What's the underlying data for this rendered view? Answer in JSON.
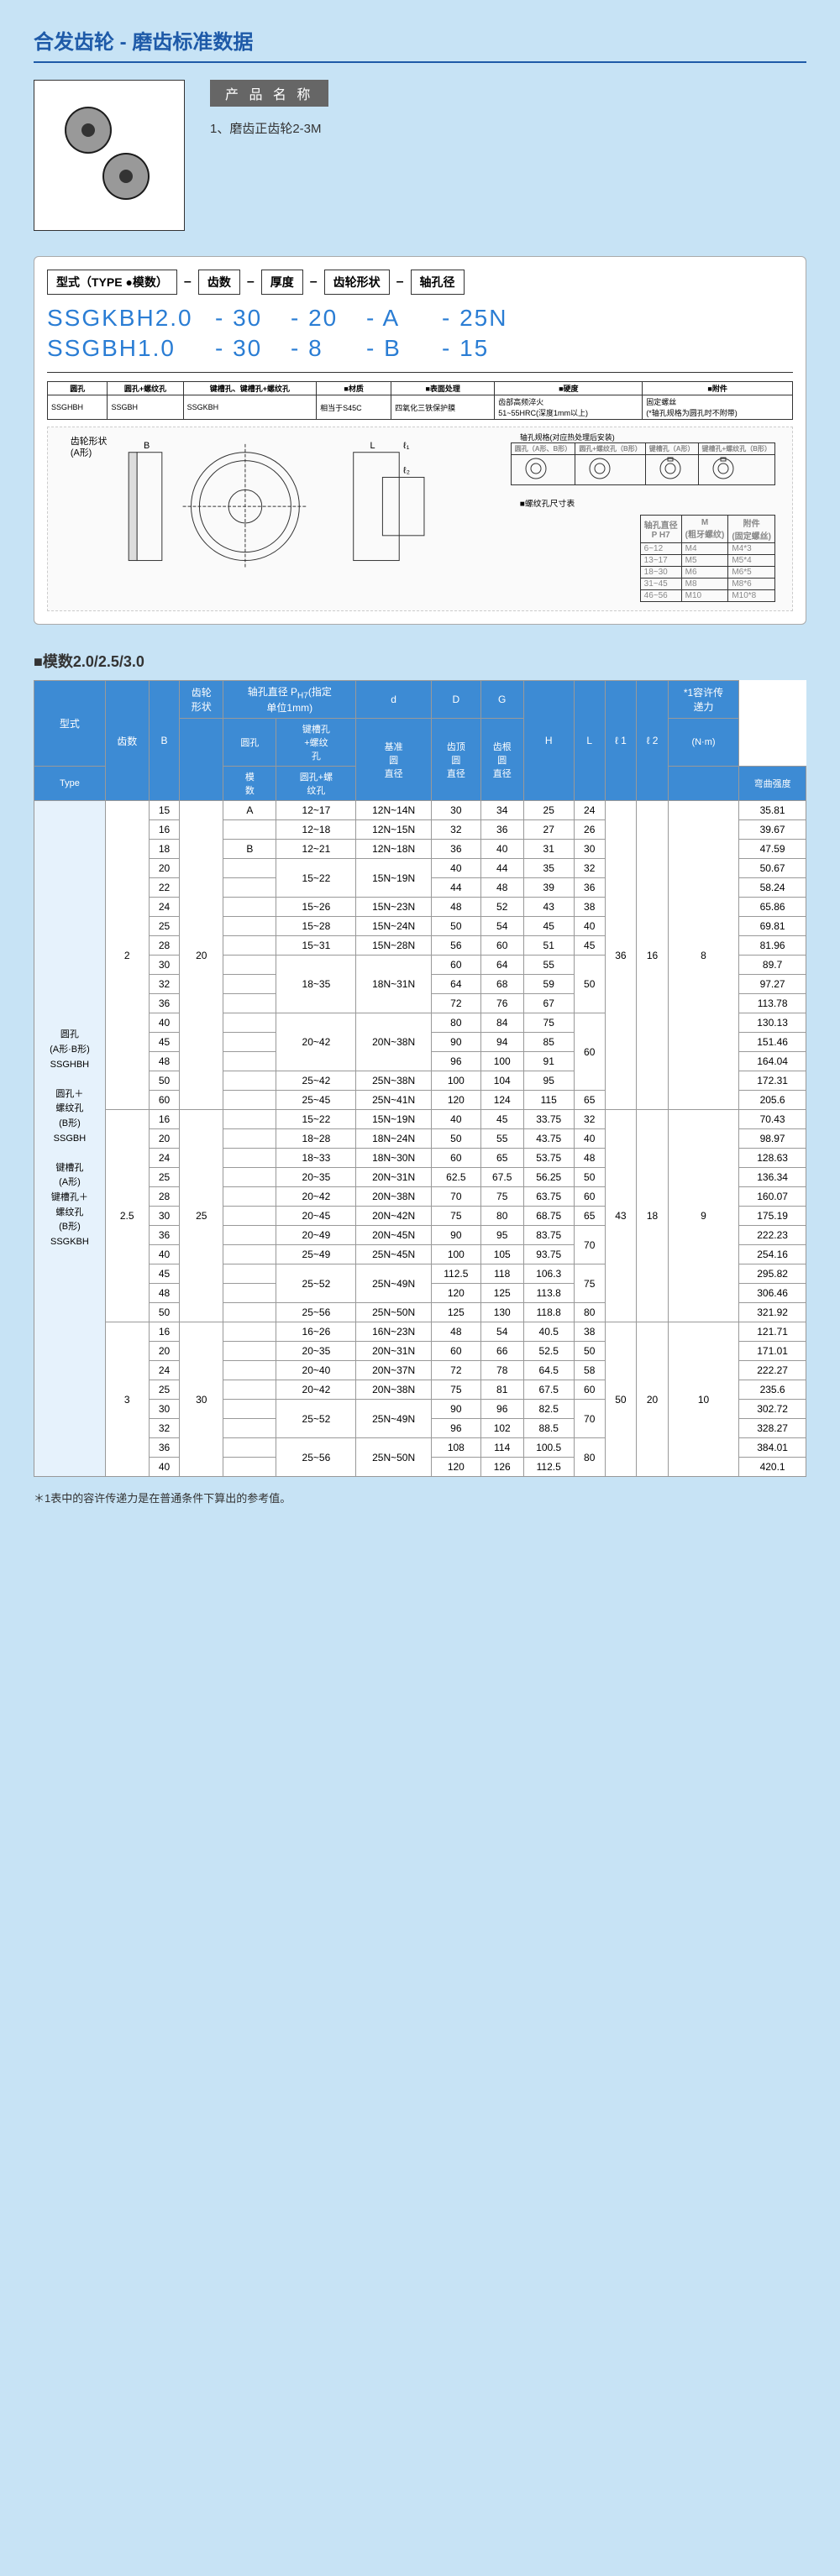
{
  "title": "合发齿轮 - 磨齿标准数据",
  "product_name_label": "产 品 名 称",
  "product_desc": "1、磨齿正齿轮2-3M",
  "type_header": {
    "labels": [
      "型式（TYPE ●模数）",
      "齿数",
      "厚度",
      "齿轮形状",
      "轴孔径"
    ],
    "line1": [
      "SSGKBH2.0",
      "- 30",
      "- 20",
      "-  A",
      "- 25N"
    ],
    "line2": [
      "SSGBH1.0",
      "- 30",
      "- 8",
      "-  B",
      "- 15"
    ]
  },
  "diagram_spec_header": [
    "圆孔",
    "圆孔+螺纹孔",
    "键槽孔、键槽孔+螺纹孔",
    "材质",
    "表面处理",
    "硬度",
    "附件"
  ],
  "diagram_spec_row": [
    "SSGHBH",
    "SSGBH",
    "SSGKBH",
    "相当于S45C",
    "四氧化三铁保护膜",
    "齿部高频淬火\n51~55HRC(深度1mm以上)",
    "固定螺丝\n(*轴孔规格为圆孔时不附带)"
  ],
  "bore_label": "齿轮形状\n(A形)",
  "bore_spec_title": "轴孔规格(对应热处理后安装)",
  "bore_styles": [
    "圆孔（A形、B形）",
    "圆孔+螺纹孔（B形）",
    "键槽孔（A形）",
    "键槽孔+螺纹孔（B形）"
  ],
  "thread_table_title": "螺纹孔尺寸表",
  "thread_table_header": [
    "轴孔直径\nP H7",
    "M\n(粗牙螺纹)",
    "附件\n(固定螺丝)"
  ],
  "thread_table_rows": [
    [
      "6~12",
      "M4",
      "M4*3"
    ],
    [
      "13~17",
      "M5",
      "M5*4"
    ],
    [
      "18~30",
      "M6",
      "M6*5"
    ],
    [
      "31~45",
      "M8",
      "M8*6"
    ],
    [
      "46~56",
      "M10",
      "M10*8"
    ]
  ],
  "section2_title": "■模数2.0/2.5/3.0",
  "table_header": {
    "row1": [
      "型式",
      "",
      "齿轮\n形状",
      "轴孔直径 PH7(指定\n单位1mm)",
      "d",
      "D",
      "G",
      "",
      "",
      "",
      "",
      "*1容许传\n递力"
    ],
    "row2": [
      "齿数",
      "B",
      "",
      "圆孔",
      "键槽孔\n+螺纹\n孔",
      "基准\n圆\n直径",
      "齿顶\n圆\n直径",
      "齿根\n圆\n直径",
      "H",
      "L",
      "ℓ 1",
      "ℓ 2",
      "(N·m)"
    ],
    "row3": [
      "Type",
      "模\n数",
      "",
      "",
      "圆孔+螺\n纹孔",
      "",
      "",
      "",
      "",
      "",
      "",
      "",
      "",
      "弯曲强度"
    ]
  },
  "type_labels": "圆孔\n(A形·B形)\nSSGHBH\n\n圆孔＋\n螺纹孔\n(B形)\nSSGBH\n\n键槽孔\n(A形)\n键槽孔＋\n螺纹孔\n(B形)\nSSGKBH",
  "data_rows": [
    {
      "mod": "2",
      "B": "20",
      "tc": "15",
      "shape": "A",
      "b1": "12~17",
      "b2": "12N~14N",
      "d": "30",
      "D": "34",
      "G": "25",
      "H": "24",
      "L": "36",
      "l1": "16",
      "l2": "8",
      "str": "35.81"
    },
    {
      "tc": "16",
      "b1": "12~18",
      "b2": "12N~15N",
      "d": "32",
      "D": "36",
      "G": "27",
      "H": "26",
      "str": "39.67"
    },
    {
      "tc": "18",
      "shape": "B",
      "b1": "12~21",
      "b2": "12N~18N",
      "d": "36",
      "D": "40",
      "G": "31",
      "H": "30",
      "str": "47.59"
    },
    {
      "tc": "20",
      "b1": "15~22",
      "b2": "15N~19N",
      "d": "40",
      "D": "44",
      "G": "35",
      "H": "32",
      "str": "50.67",
      "merge_b": 2
    },
    {
      "tc": "22",
      "d": "44",
      "D": "48",
      "G": "39",
      "H": "36",
      "str": "58.24"
    },
    {
      "tc": "24",
      "b1": "15~26",
      "b2": "15N~23N",
      "d": "48",
      "D": "52",
      "G": "43",
      "H": "38",
      "str": "65.86"
    },
    {
      "tc": "25",
      "b1": "15~28",
      "b2": "15N~24N",
      "d": "50",
      "D": "54",
      "G": "45",
      "H": "40",
      "str": "69.81"
    },
    {
      "tc": "28",
      "b1": "15~31",
      "b2": "15N~28N",
      "d": "56",
      "D": "60",
      "G": "51",
      "H": "45",
      "str": "81.96"
    },
    {
      "tc": "30",
      "b1": "18~35",
      "b2": "18N~31N",
      "d": "60",
      "D": "64",
      "G": "55",
      "H": "50",
      "str": "89.7",
      "merge_b": 3
    },
    {
      "tc": "32",
      "d": "64",
      "D": "68",
      "G": "59",
      "str": "97.27"
    },
    {
      "tc": "36",
      "d": "72",
      "D": "76",
      "G": "67",
      "str": "113.78"
    },
    {
      "tc": "40",
      "b1": "20~42",
      "b2": "20N~38N",
      "d": "80",
      "D": "84",
      "G": "75",
      "H": "60",
      "str": "130.13",
      "merge_b": 3
    },
    {
      "tc": "45",
      "d": "90",
      "D": "94",
      "G": "85",
      "str": "151.46"
    },
    {
      "tc": "48",
      "d": "96",
      "D": "100",
      "G": "91",
      "str": "164.04"
    },
    {
      "tc": "50",
      "b1": "25~42",
      "b2": "25N~38N",
      "d": "100",
      "D": "104",
      "G": "95",
      "str": "172.31"
    },
    {
      "tc": "60",
      "b1": "25~45",
      "b2": "25N~41N",
      "d": "120",
      "D": "124",
      "G": "115",
      "H": "65",
      "str": "205.6"
    },
    {
      "mod": "2.5",
      "B": "25",
      "tc": "16",
      "b1": "15~22",
      "b2": "15N~19N",
      "d": "40",
      "D": "45",
      "G": "33.75",
      "H": "32",
      "L": "43",
      "l1": "18",
      "l2": "9",
      "str": "70.43"
    },
    {
      "tc": "20",
      "b1": "18~28",
      "b2": "18N~24N",
      "d": "50",
      "D": "55",
      "G": "43.75",
      "H": "40",
      "str": "98.97"
    },
    {
      "tc": "24",
      "b1": "18~33",
      "b2": "18N~30N",
      "d": "60",
      "D": "65",
      "G": "53.75",
      "H": "48",
      "str": "128.63"
    },
    {
      "tc": "25",
      "b1": "20~35",
      "b2": "20N~31N",
      "d": "62.5",
      "D": "67.5",
      "G": "56.25",
      "H": "50",
      "str": "136.34"
    },
    {
      "tc": "28",
      "b1": "20~42",
      "b2": "20N~38N",
      "d": "70",
      "D": "75",
      "G": "63.75",
      "H": "60",
      "str": "160.07"
    },
    {
      "tc": "30",
      "b1": "20~45",
      "b2": "20N~42N",
      "d": "75",
      "D": "80",
      "G": "68.75",
      "H": "65",
      "str": "175.19"
    },
    {
      "tc": "36",
      "b1": "20~49",
      "b2": "20N~45N",
      "d": "90",
      "D": "95",
      "G": "83.75",
      "H": "70",
      "str": "222.23"
    },
    {
      "tc": "40",
      "b1": "25~49",
      "b2": "25N~45N",
      "d": "100",
      "D": "105",
      "G": "93.75",
      "str": "254.16"
    },
    {
      "tc": "45",
      "b1": "25~52",
      "b2": "25N~49N",
      "d": "112.5",
      "D": "118",
      "G": "106.3",
      "H": "75",
      "str": "295.82",
      "merge_b": 2
    },
    {
      "tc": "48",
      "d": "120",
      "D": "125",
      "G": "113.8",
      "str": "306.46"
    },
    {
      "tc": "50",
      "b1": "25~56",
      "b2": "25N~50N",
      "d": "125",
      "D": "130",
      "G": "118.8",
      "H": "80",
      "str": "321.92"
    },
    {
      "mod": "3",
      "B": "30",
      "tc": "16",
      "b1": "16~26",
      "b2": "16N~23N",
      "d": "48",
      "D": "54",
      "G": "40.5",
      "H": "38",
      "L": "50",
      "l1": "20",
      "l2": "10",
      "str": "121.71"
    },
    {
      "tc": "20",
      "b1": "20~35",
      "b2": "20N~31N",
      "d": "60",
      "D": "66",
      "G": "52.5",
      "H": "50",
      "str": "171.01"
    },
    {
      "tc": "24",
      "b1": "20~40",
      "b2": "20N~37N",
      "d": "72",
      "D": "78",
      "G": "64.5",
      "H": "58",
      "str": "222.27"
    },
    {
      "tc": "25",
      "b1": "20~42",
      "b2": "20N~38N",
      "d": "75",
      "D": "81",
      "G": "67.5",
      "H": "60",
      "str": "235.6"
    },
    {
      "tc": "30",
      "b1": "25~52",
      "b2": "25N~49N",
      "d": "90",
      "D": "96",
      "G": "82.5",
      "H": "70",
      "str": "302.72",
      "merge_b": 2
    },
    {
      "tc": "32",
      "d": "96",
      "D": "102",
      "G": "88.5",
      "str": "328.27"
    },
    {
      "tc": "36",
      "b1": "25~56",
      "b2": "25N~50N",
      "d": "108",
      "D": "114",
      "G": "100.5",
      "H": "80",
      "str": "384.01",
      "merge_b": 2
    },
    {
      "tc": "40",
      "d": "120",
      "D": "126",
      "G": "112.5",
      "str": "420.1"
    }
  ],
  "footnote": "＊1表中的容许传递力是在普通条件下算出的参考值。"
}
